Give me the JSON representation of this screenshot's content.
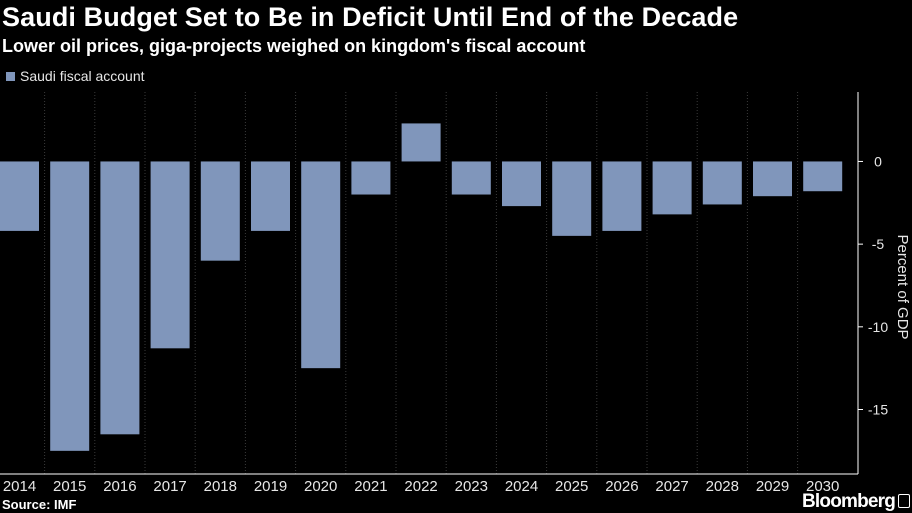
{
  "title": "Saudi Budget Set to Be in Deficit Until End of the Decade",
  "subtitle": "Lower oil prices, giga-projects weighed on kingdom's fiscal account",
  "source": "Source: IMF",
  "brand": "Bloomberg",
  "colors": {
    "background": "#000000",
    "bar": "#8096bb",
    "grid": "#3a3a3a",
    "text": "#ffffff"
  },
  "chart_data": {
    "type": "bar",
    "categories": [
      "2014",
      "2015",
      "2016",
      "2017",
      "2018",
      "2019",
      "2020",
      "2021",
      "2022",
      "2023",
      "2024",
      "2025",
      "2026",
      "2027",
      "2028",
      "2029",
      "2030"
    ],
    "series": [
      {
        "name": "Saudi fiscal account",
        "values": [
          -4.2,
          -17.5,
          -16.5,
          -11.3,
          -6.0,
          -4.2,
          -12.5,
          -2.0,
          2.3,
          -2.0,
          -2.7,
          -4.5,
          -4.2,
          -3.2,
          -2.6,
          -2.1,
          -1.8
        ]
      }
    ],
    "ylabel": "Percent of GDP",
    "ylim": [
      -18.9,
      4.2
    ],
    "yticks": [
      0,
      -5,
      -10,
      -15
    ],
    "ytick_labels": [
      "0",
      "-5",
      "-10",
      "-15"
    ],
    "grid": true,
    "legend": "top-left"
  }
}
